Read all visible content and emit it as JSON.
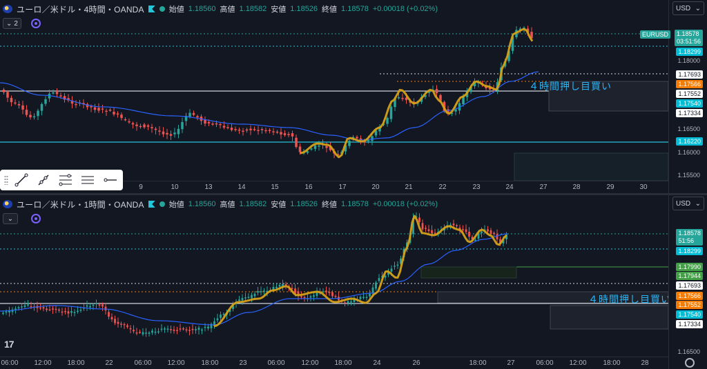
{
  "top": {
    "symbol": "ユーロ／米ドル・4時間・OANDA",
    "open_label": "始値",
    "open_value": "1.18560",
    "high_label": "高値",
    "high_value": "1.18582",
    "low_label": "安値",
    "low_value": "1.18526",
    "close_label": "終値",
    "close_value": "1.18578",
    "change": "+0.00018 (+0.02%)",
    "collapse_count": "2",
    "currency": "USD",
    "symbol_tag": "EURUSD",
    "countdown": "03:51:56",
    "price_ticks": [
      "1.18000",
      "1.16500",
      "1.16000",
      "1.15500"
    ],
    "price_tags": {
      "last": "1.18578",
      "ref1": "1.18299",
      "ref2": "1.17693",
      "ref3": "1.17566",
      "ref4": "1.17552",
      "ref5": "1.17540",
      "ref6": "1.17334",
      "ref7": "1.16220"
    },
    "time_ticks": [
      "9",
      "10",
      "13",
      "14",
      "15",
      "16",
      "17",
      "20",
      "21",
      "22",
      "23",
      "24",
      "27",
      "28",
      "29",
      "30"
    ],
    "annotation": "４時間押し目買い"
  },
  "bottom": {
    "symbol": "ユーロ／米ドル・1時間・OANDA",
    "open_label": "始値",
    "open_value": "1.18560",
    "high_label": "高値",
    "high_value": "1.18582",
    "low_label": "安値",
    "low_value": "1.18526",
    "close_label": "終値",
    "close_value": "1.18578",
    "change": "+0.00018 (+0.02%)",
    "currency": "USD",
    "countdown": "51:56",
    "price_ticks": [
      "1.16500"
    ],
    "price_tags": {
      "last": "1.18578",
      "ref1": "1.18299",
      "ref2": "1.17990",
      "ref3": "1.17944",
      "ref4": "1.17693",
      "ref5": "1.17566",
      "ref6": "1.17552",
      "ref7": "1.17540",
      "ref8": "1.17334"
    },
    "time_ticks": [
      "06:00",
      "12:00",
      "18:00",
      "22",
      "06:00",
      "12:00",
      "18:00",
      "23",
      "06:00",
      "12:00",
      "18:00",
      "24",
      "26",
      "18:00",
      "27",
      "06:00",
      "12:00",
      "18:00",
      "28"
    ],
    "annotation": "４時間押し目買い"
  },
  "toolbar": {
    "tools": [
      "trend-line-icon",
      "ray-icon",
      "fib-retracement-icon",
      "parallel-channel-icon",
      "horizontal-ray-icon"
    ]
  },
  "colors": {
    "bg": "#131722",
    "up": "#26a69a",
    "down": "#ef5350",
    "ma": "#2962ff",
    "highlight": "#f5c242",
    "annotation": "#29b6f6"
  }
}
